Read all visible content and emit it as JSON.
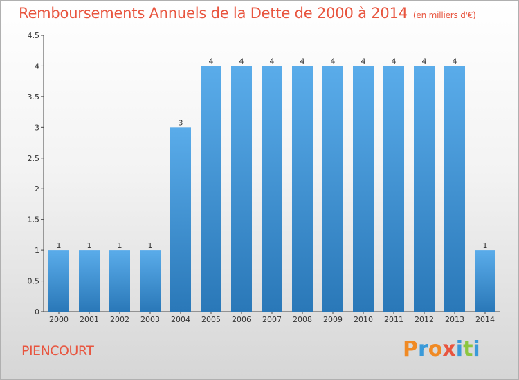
{
  "header": {
    "title": "Remboursements Annuels de la Dette de 2000 à 2014",
    "unit": "(en milliers d'€)"
  },
  "footer": {
    "commune": "PIENCOURT",
    "logo": "Proxiti"
  },
  "colors": {
    "title": "#e8553f",
    "bar_top": "#5aacea",
    "bar_bottom": "#2a78b8",
    "logo_letters": [
      "#f08a24",
      "#3a9ad9",
      "#f08a24",
      "#e8553f",
      "#3a9ad9",
      "#8cc63f",
      "#3a9ad9"
    ]
  },
  "chart_data": {
    "type": "bar",
    "title": "Remboursements Annuels de la Dette de 2000 à 2014",
    "xlabel": "",
    "ylabel": "",
    "categories": [
      "2000",
      "2001",
      "2002",
      "2003",
      "2004",
      "2005",
      "2006",
      "2007",
      "2008",
      "2009",
      "2010",
      "2011",
      "2012",
      "2013",
      "2014"
    ],
    "values": [
      1,
      1,
      1,
      1,
      3,
      4,
      4,
      4,
      4,
      4,
      4,
      4,
      4,
      4,
      1
    ],
    "value_labels": [
      "1",
      "1",
      "1",
      "1",
      "3",
      "4",
      "4",
      "4",
      "4",
      "4",
      "4",
      "4",
      "4",
      "4",
      "1"
    ],
    "ylim": [
      0,
      4.5
    ],
    "yticks": [
      0,
      0.5,
      1,
      1.5,
      2,
      2.5,
      3,
      3.5,
      4,
      4.5
    ],
    "ytick_labels": [
      "0",
      "0.5",
      "1",
      "1.5",
      "2",
      "2.5",
      "3",
      "3.5",
      "4",
      "4.5"
    ],
    "grid": false,
    "legend": "none"
  }
}
